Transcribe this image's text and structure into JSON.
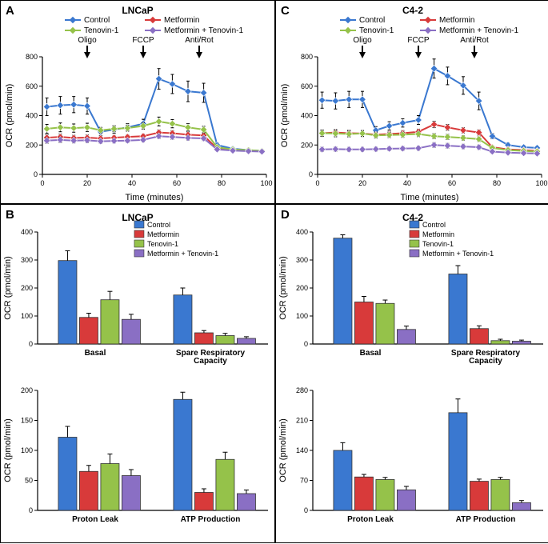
{
  "colors": {
    "control": "#3a78d0",
    "metformin": "#d83a3a",
    "tenovin": "#95c24a",
    "combo": "#8a6fc4",
    "outline": "#333333",
    "axis": "#000000"
  },
  "series_names": {
    "control": "Control",
    "metformin": "Metformin",
    "tenovin": "Tenovin-1",
    "combo": "Metformin + Tenovin-1"
  },
  "panelA": {
    "label": "A",
    "title": "LNCaP",
    "x_label": "Time (minutes)",
    "y_label": "OCR (pmol/min)",
    "xlim": [
      0,
      100
    ],
    "ylim": [
      0,
      800
    ],
    "xtick_step": 20,
    "ytick_step": 200,
    "injections": [
      {
        "label": "Oligo",
        "x": 20
      },
      {
        "label": "FCCP",
        "x": 45
      },
      {
        "label": "Anti/Rot",
        "x": 70
      }
    ],
    "x": [
      2,
      8,
      14,
      20,
      26,
      32,
      38,
      45,
      52,
      58,
      65,
      72,
      78,
      85,
      92,
      98
    ],
    "control": {
      "y": [
        460,
        470,
        475,
        465,
        290,
        305,
        320,
        345,
        650,
        615,
        565,
        555,
        200,
        175,
        165,
        160
      ],
      "err": [
        60,
        60,
        55,
        55,
        25,
        25,
        25,
        30,
        70,
        65,
        70,
        65,
        15,
        12,
        10,
        10
      ]
    },
    "metformin": {
      "y": [
        250,
        255,
        248,
        250,
        245,
        250,
        255,
        260,
        285,
        280,
        270,
        265,
        175,
        165,
        160,
        158
      ],
      "err": [
        20,
        20,
        18,
        18,
        15,
        15,
        15,
        15,
        18,
        18,
        18,
        18,
        10,
        10,
        10,
        10
      ]
    },
    "tenovin": {
      "y": [
        310,
        320,
        315,
        320,
        300,
        310,
        315,
        330,
        360,
        345,
        320,
        305,
        185,
        170,
        165,
        160
      ],
      "err": [
        30,
        30,
        28,
        28,
        20,
        20,
        20,
        22,
        30,
        28,
        25,
        22,
        12,
        10,
        10,
        10
      ]
    },
    "combo": {
      "y": [
        230,
        235,
        230,
        232,
        225,
        228,
        230,
        235,
        260,
        255,
        248,
        245,
        170,
        162,
        158,
        155
      ],
      "err": [
        18,
        18,
        16,
        16,
        14,
        14,
        14,
        14,
        16,
        16,
        15,
        15,
        10,
        10,
        10,
        10
      ]
    }
  },
  "panelC": {
    "label": "C",
    "title": "C4-2",
    "x_label": "Time (minutes)",
    "y_label": "OCR (pmol/min)",
    "xlim": [
      0,
      100
    ],
    "ylim": [
      0,
      800
    ],
    "xtick_step": 20,
    "ytick_step": 200,
    "injections": [
      {
        "label": "Oligo",
        "x": 20
      },
      {
        "label": "FCCP",
        "x": 45
      },
      {
        "label": "Anti/Rot",
        "x": 70
      }
    ],
    "x": [
      2,
      8,
      14,
      20,
      26,
      32,
      38,
      45,
      52,
      58,
      65,
      72,
      78,
      85,
      92,
      98
    ],
    "control": {
      "y": [
        505,
        500,
        510,
        510,
        300,
        330,
        350,
        370,
        720,
        670,
        605,
        500,
        260,
        200,
        185,
        180
      ],
      "err": [
        55,
        55,
        55,
        55,
        25,
        28,
        28,
        30,
        65,
        60,
        60,
        60,
        18,
        15,
        12,
        12
      ]
    },
    "metformin": {
      "y": [
        280,
        285,
        280,
        278,
        270,
        275,
        280,
        290,
        340,
        320,
        300,
        285,
        185,
        170,
        165,
        160
      ],
      "err": [
        20,
        20,
        20,
        20,
        18,
        18,
        18,
        18,
        22,
        20,
        18,
        18,
        12,
        10,
        10,
        10
      ]
    },
    "tenovin": {
      "y": [
        280,
        278,
        275,
        278,
        265,
        268,
        270,
        275,
        260,
        255,
        248,
        240,
        180,
        165,
        160,
        155
      ],
      "err": [
        22,
        22,
        20,
        20,
        18,
        18,
        18,
        18,
        18,
        18,
        16,
        16,
        12,
        10,
        10,
        10
      ]
    },
    "combo": {
      "y": [
        170,
        172,
        170,
        170,
        172,
        175,
        176,
        178,
        200,
        195,
        190,
        185,
        155,
        148,
        145,
        142
      ],
      "err": [
        15,
        15,
        14,
        14,
        14,
        14,
        14,
        14,
        16,
        16,
        15,
        15,
        10,
        10,
        10,
        10
      ]
    }
  },
  "panelB": {
    "label": "B",
    "title": "LNCaP",
    "y_label": "OCR (pmol/min)",
    "chart1": {
      "ylim": [
        0,
        400
      ],
      "ytick_step": 100,
      "groups": [
        "Basal",
        "Spare Respiratory\nCapacity"
      ],
      "control": {
        "v": [
          298,
          175
        ],
        "e": [
          35,
          25
        ]
      },
      "metformin": {
        "v": [
          95,
          40
        ],
        "e": [
          15,
          8
        ]
      },
      "tenovin": {
        "v": [
          158,
          30
        ],
        "e": [
          30,
          8
        ]
      },
      "combo": {
        "v": [
          88,
          20
        ],
        "e": [
          18,
          6
        ]
      }
    },
    "chart2": {
      "ylim": [
        0,
        200
      ],
      "ytick_step": 50,
      "groups": [
        "Proton Leak",
        "ATP Production"
      ],
      "control": {
        "v": [
          122,
          185
        ],
        "e": [
          18,
          12
        ]
      },
      "metformin": {
        "v": [
          65,
          30
        ],
        "e": [
          10,
          6
        ]
      },
      "tenovin": {
        "v": [
          78,
          85
        ],
        "e": [
          16,
          12
        ]
      },
      "combo": {
        "v": [
          58,
          28
        ],
        "e": [
          10,
          6
        ]
      }
    }
  },
  "panelD": {
    "label": "D",
    "title": "C4-2",
    "y_label": "OCR (pmol/min)",
    "chart1": {
      "ylim": [
        0,
        400
      ],
      "ytick_step": 100,
      "groups": [
        "Basal",
        "Spare Respiratory\nCapacity"
      ],
      "control": {
        "v": [
          378,
          250
        ],
        "e": [
          12,
          30
        ]
      },
      "metformin": {
        "v": [
          150,
          55
        ],
        "e": [
          20,
          10
        ]
      },
      "tenovin": {
        "v": [
          145,
          12
        ],
        "e": [
          12,
          5
        ]
      },
      "combo": {
        "v": [
          52,
          10
        ],
        "e": [
          12,
          4
        ]
      }
    },
    "chart2": {
      "ylim": [
        0,
        280
      ],
      "ytick_step": 70,
      "groups": [
        "Proton Leak",
        "ATP Production"
      ],
      "control": {
        "v": [
          140,
          228
        ],
        "e": [
          18,
          32
        ]
      },
      "metformin": {
        "v": [
          78,
          68
        ],
        "e": [
          6,
          5
        ]
      },
      "tenovin": {
        "v": [
          72,
          72
        ],
        "e": [
          5,
          5
        ]
      },
      "combo": {
        "v": [
          48,
          18
        ],
        "e": [
          8,
          5
        ]
      }
    }
  }
}
